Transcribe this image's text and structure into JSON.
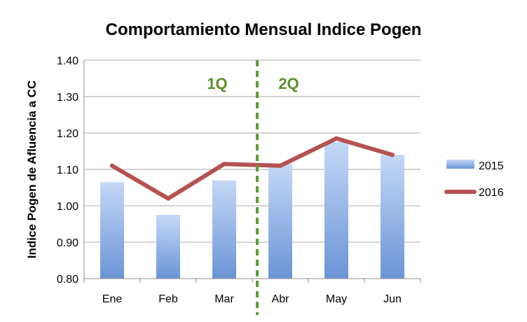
{
  "chart_data": {
    "type": "bar",
    "title": "Comportamiento Mensual Indice Pogen",
    "ylabel": "Indice Pogen de Afluencia a CC",
    "xlabel": "",
    "categories": [
      "Ene",
      "Feb",
      "Mar",
      "Abr",
      "May",
      "Jun"
    ],
    "ylim": [
      0.8,
      1.4
    ],
    "yticks": [
      "0.80",
      "0.90",
      "1.00",
      "1.10",
      "1.20",
      "1.30",
      "1.40"
    ],
    "grid": true,
    "legend_position": "right",
    "series": [
      {
        "name": "2015",
        "kind": "bar",
        "values": [
          1.065,
          0.975,
          1.07,
          1.115,
          1.175,
          1.14
        ],
        "color": "#7ea6e0"
      },
      {
        "name": "2016",
        "kind": "line",
        "values": [
          1.11,
          1.02,
          1.115,
          1.11,
          1.185,
          1.14
        ],
        "color": "#b5524f"
      }
    ],
    "annotations": [
      {
        "text": "1Q",
        "color": "#5b8f2a"
      },
      {
        "text": "2Q",
        "color": "#5b8f2a"
      }
    ],
    "divider": {
      "between": [
        "Mar",
        "Abr"
      ],
      "style": "dashed",
      "color": "#5b9e32"
    }
  }
}
